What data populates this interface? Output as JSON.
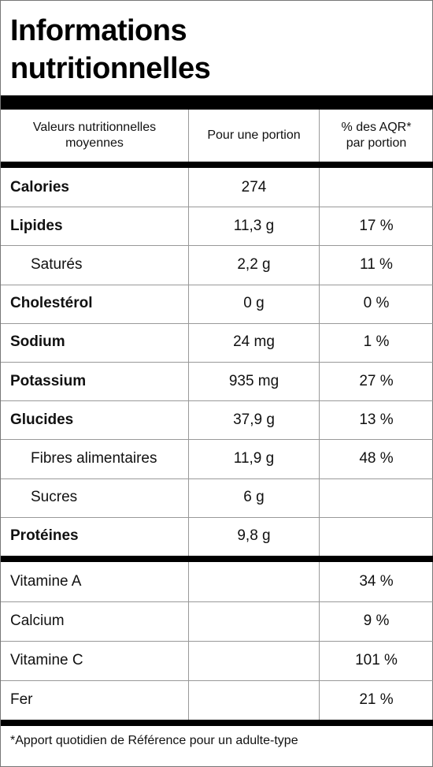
{
  "title_line1": "Informations",
  "title_line2": "nutritionnelles",
  "header": {
    "col1": [
      "Valeurs nutritionnelles",
      "moyennes"
    ],
    "col2": "Pour une portion",
    "col3": [
      "% des AQR*",
      "par portion"
    ]
  },
  "nutrients": [
    {
      "name": "Calories",
      "amount": "274",
      "pct": "",
      "bold": true
    },
    {
      "name": "Lipides",
      "amount": "11,3 g",
      "pct": "17 %",
      "bold": true
    },
    {
      "name": "Saturés",
      "amount": "2,2 g",
      "pct": "11 %",
      "sub": true
    },
    {
      "name": "Cholestérol",
      "amount": "0 g",
      "pct": "0 %",
      "bold": true
    },
    {
      "name": "Sodium",
      "amount": "24 mg",
      "pct": "1 %",
      "bold": true
    },
    {
      "name": "Potassium",
      "amount": "935 mg",
      "pct": "27 %",
      "bold": true
    },
    {
      "name": "Glucides",
      "amount": "37,9 g",
      "pct": "13 %",
      "bold": true
    },
    {
      "name": "Fibres alimentaires",
      "amount": "11,9 g",
      "pct": "48 %",
      "sub": true
    },
    {
      "name": "Sucres",
      "amount": "6 g",
      "pct": "",
      "sub": true
    },
    {
      "name": "Protéines",
      "amount": "9,8 g",
      "pct": "",
      "bold": true
    }
  ],
  "vitamins": [
    {
      "name": "Vitamine A",
      "amount": "",
      "pct": "34 %"
    },
    {
      "name": "Calcium",
      "amount": "",
      "pct": "9 %"
    },
    {
      "name": "Vitamine C",
      "amount": "",
      "pct": "101 %"
    },
    {
      "name": "Fer",
      "amount": "",
      "pct": "21 %"
    }
  ],
  "footnote": "*Apport quotidien de Référence pour un adulte-type"
}
